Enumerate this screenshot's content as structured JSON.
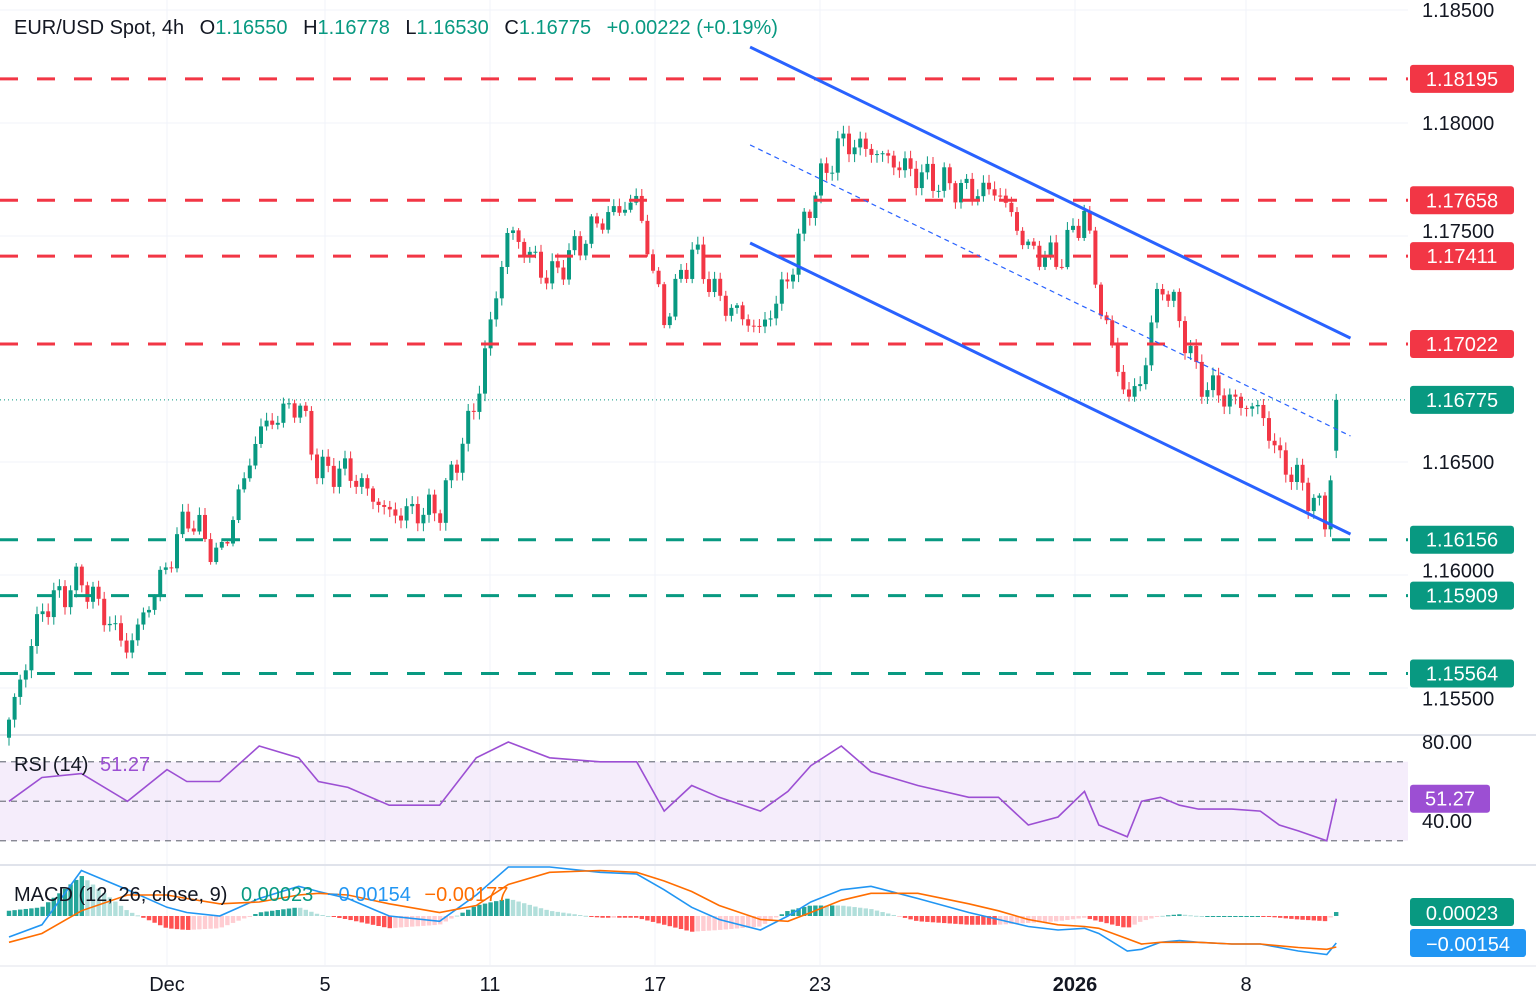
{
  "header": {
    "symbol": "EUR/USD Spot, 4h",
    "o_label": "O",
    "o_value": "1.16550",
    "h_label": "H",
    "h_value": "1.16778",
    "l_label": "L",
    "l_value": "1.16530",
    "c_label": "C",
    "c_value": "1.16775",
    "change": "+0.00222 (+0.19%)"
  },
  "colors": {
    "up": "#089981",
    "down": "#f23645",
    "channel": "#2962ff",
    "rsi": "#9c4fd3",
    "macd": "#2196f3",
    "signal": "#ff6d00"
  },
  "chart_data": {
    "type": "candlestick",
    "title": "EUR/USD Spot, 4h",
    "y_axis": {
      "ticks": [
        "1.18500",
        "1.18000",
        "1.17500",
        "1.16500",
        "1.16000",
        "1.15500"
      ],
      "range": [
        1.152,
        1.1855
      ]
    },
    "x_axis": {
      "ticks": [
        {
          "label": "Dec",
          "date": "2025-12-01",
          "bold": false
        },
        {
          "label": "5",
          "date": "2025-12-05",
          "bold": false
        },
        {
          "label": "11",
          "date": "2025-12-11",
          "bold": false
        },
        {
          "label": "17",
          "date": "2025-12-17",
          "bold": false
        },
        {
          "label": "23",
          "date": "2025-12-23",
          "bold": false
        },
        {
          "label": "2026",
          "date": "2026-01-02",
          "bold": true
        },
        {
          "label": "8",
          "date": "2026-01-08",
          "bold": false
        }
      ]
    },
    "price_path": [
      [
        "2025-11-27 00:00",
        1.1536
      ],
      [
        "2025-11-27 20:00",
        1.1585
      ],
      [
        "2025-11-28 20:00",
        1.1598
      ],
      [
        "2025-11-30 00:00",
        1.1567
      ],
      [
        "2025-12-01 00:00",
        1.1604
      ],
      [
        "2025-12-01 12:00",
        1.1627
      ],
      [
        "2025-12-02 08:00",
        1.1607
      ],
      [
        "2025-12-03 08:00",
        1.1664
      ],
      [
        "2025-12-04 08:00",
        1.1677
      ],
      [
        "2025-12-04 20:00",
        1.1646
      ],
      [
        "2025-12-05 20:00",
        1.1646
      ],
      [
        "2025-12-07 08:00",
        1.1627
      ],
      [
        "2025-12-09 04:00",
        1.1629
      ],
      [
        "2025-12-10 12:00",
        1.1677
      ],
      [
        "2025-12-11 16:00",
        1.1753
      ],
      [
        "2025-12-13 04:00",
        1.1731
      ],
      [
        "2025-12-15 00:00",
        1.1757
      ],
      [
        "2025-12-16 08:00",
        1.1766
      ],
      [
        "2025-12-17 08:00",
        1.1713
      ],
      [
        "2025-12-18 08:00",
        1.1744
      ],
      [
        "2025-12-19 08:00",
        1.1722
      ],
      [
        "2025-12-20 20:00",
        1.1708
      ],
      [
        "2025-12-21 20:00",
        1.1731
      ],
      [
        "2025-12-22 16:00",
        1.1766
      ],
      [
        "2025-12-23 20:00",
        1.1792
      ],
      [
        "2025-12-25 00:00",
        1.1788
      ],
      [
        "2025-12-26 20:00",
        1.1777
      ],
      [
        "2025-12-28 20:00",
        1.177
      ],
      [
        "2025-12-30 00:00",
        1.177
      ],
      [
        "2025-12-31 04:00",
        1.1744
      ],
      [
        "2026-01-01 08:00",
        1.1739
      ],
      [
        "2026-01-02 08:00",
        1.1761
      ],
      [
        "2026-01-02 20:00",
        1.1722
      ],
      [
        "2026-01-03 20:00",
        1.1677
      ],
      [
        "2026-01-04 08:00",
        1.1686
      ],
      [
        "2026-01-05 00:00",
        1.1731
      ],
      [
        "2026-01-05 16:00",
        1.1713
      ],
      [
        "2026-01-06 08:00",
        1.1686
      ],
      [
        "2026-01-07 12:00",
        1.1677
      ],
      [
        "2026-01-08 12:00",
        1.1673
      ],
      [
        "2026-01-09 04:00",
        1.1651
      ],
      [
        "2026-01-09 20:00",
        1.1642
      ],
      [
        "2026-01-10 20:00",
        1.1624
      ],
      [
        "2026-01-11 04:00",
        1.16775
      ]
    ],
    "levels": {
      "resistance": [
        "1.18195",
        "1.17658",
        "1.17411",
        "1.17022"
      ],
      "support": [
        "1.16156",
        "1.15909",
        "1.15564"
      ],
      "last_price": "1.16775"
    },
    "channel": {
      "upper": [
        [
          "2025-12-20 11:00",
          1.18336
        ],
        [
          "2026-01-11 16:00",
          1.17048
        ]
      ],
      "middle": [
        [
          "2025-12-20 11:00",
          1.17903
        ],
        [
          "2026-01-11 16:00",
          1.16615
        ]
      ],
      "lower": [
        [
          "2025-12-20 11:00",
          1.17469
        ],
        [
          "2026-01-11 16:00",
          1.16181
        ]
      ]
    },
    "rsi": {
      "label": "RSI (14)",
      "value": "51.27",
      "ticks": [
        "80.00",
        "40.00"
      ],
      "bands": [
        70,
        50,
        30
      ],
      "values": [
        50,
        62,
        64,
        50,
        66,
        60,
        60,
        78,
        72,
        60,
        57,
        48,
        48,
        72,
        80,
        72,
        70,
        70,
        45,
        58,
        52,
        45,
        55,
        68,
        78,
        65,
        58,
        52,
        52,
        38,
        42,
        55,
        38,
        32,
        50,
        52,
        48,
        46,
        46,
        45,
        38,
        35,
        30,
        51.27
      ]
    },
    "macd": {
      "label": "MACD (12, 26, close, 9)",
      "hist_value": "0.00023",
      "macd_value": "−0.00154",
      "signal_value": "−0.00177",
      "macd": [
        -0.0012,
        -0.0005,
        0.0026,
        0.0015,
        0.0005,
        0.0002,
        0.0,
        0.001,
        0.0017,
        0.0014,
        0.001,
        0.0,
        -0.0003,
        0.0012,
        0.0028,
        0.0028,
        0.0025,
        0.0024,
        0.0015,
        0.0005,
        -0.0002,
        -0.0008,
        0.0,
        0.0008,
        0.0015,
        0.0017,
        0.001,
        0.0002,
        -0.0002,
        -0.0006,
        -0.0008,
        -0.0007,
        -0.001,
        -0.002,
        -0.0019,
        -0.0015,
        -0.0014,
        -0.0015,
        -0.0016,
        -0.0016,
        -0.0018,
        -0.002,
        -0.0022,
        -0.00154
      ],
      "signal": [
        -0.0015,
        -0.001,
        0.0003,
        0.0012,
        0.0012,
        0.001,
        0.0007,
        0.0008,
        0.0012,
        0.0013,
        0.0012,
        0.0007,
        0.0002,
        0.0006,
        0.0018,
        0.0025,
        0.0026,
        0.0025,
        0.002,
        0.0014,
        0.0006,
        -0.0002,
        -0.0003,
        0.0002,
        0.0009,
        0.0013,
        0.0013,
        0.0007,
        0.0003,
        -0.0002,
        -0.0005,
        -0.0006,
        -0.0007,
        -0.0013,
        -0.0016,
        -0.0015,
        -0.0015,
        -0.0015,
        -0.0016,
        -0.0016,
        -0.0017,
        -0.0018,
        -0.0019,
        -0.00177
      ]
    }
  }
}
